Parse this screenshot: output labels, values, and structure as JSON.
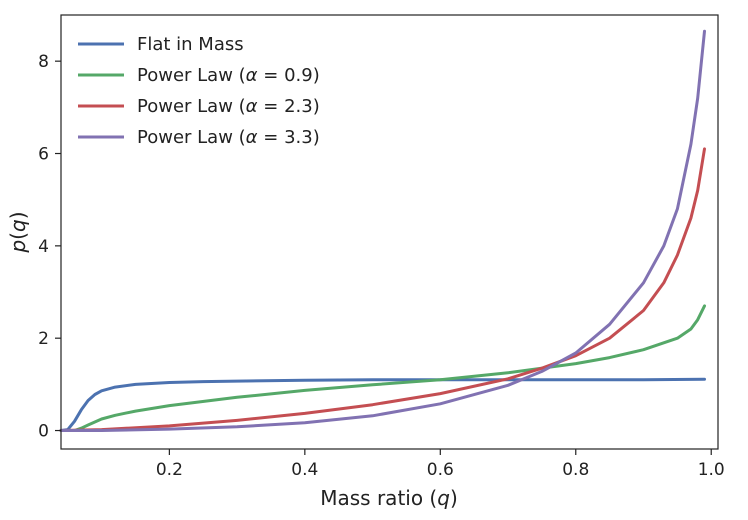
{
  "chart_data": {
    "type": "line",
    "xlabel": "Mass ratio (q)",
    "ylabel": "p(q)",
    "xlim": [
      0.04,
      1.01
    ],
    "ylim": [
      -0.4,
      9.0
    ],
    "xticks": [
      0.2,
      0.4,
      0.6,
      0.8,
      1.0
    ],
    "xtick_labels": [
      "0.2",
      "0.4",
      "0.6",
      "0.8",
      "1.0"
    ],
    "yticks": [
      0,
      2,
      4,
      6,
      8
    ],
    "ytick_labels": [
      "0",
      "2",
      "4",
      "6",
      "8"
    ],
    "grid": false,
    "legend_position": "top-left",
    "series": [
      {
        "name": "Flat in Mass",
        "color": "#4c72b0",
        "x": [
          0.04,
          0.05,
          0.06,
          0.07,
          0.08,
          0.09,
          0.1,
          0.12,
          0.15,
          0.2,
          0.25,
          0.3,
          0.4,
          0.5,
          0.6,
          0.7,
          0.8,
          0.9,
          0.99
        ],
        "y": [
          0.0,
          0.02,
          0.2,
          0.45,
          0.65,
          0.78,
          0.86,
          0.94,
          1.0,
          1.04,
          1.06,
          1.07,
          1.09,
          1.1,
          1.1,
          1.1,
          1.1,
          1.1,
          1.11
        ]
      },
      {
        "name": "Power Law (α = 0.9)",
        "color": "#55a868",
        "x": [
          0.04,
          0.06,
          0.07,
          0.08,
          0.1,
          0.12,
          0.15,
          0.2,
          0.3,
          0.4,
          0.5,
          0.6,
          0.7,
          0.8,
          0.85,
          0.9,
          0.95,
          0.97,
          0.98,
          0.99
        ],
        "y": [
          0.0,
          0.0,
          0.05,
          0.12,
          0.25,
          0.33,
          0.42,
          0.54,
          0.72,
          0.87,
          0.99,
          1.1,
          1.25,
          1.45,
          1.58,
          1.75,
          2.0,
          2.2,
          2.4,
          2.7
        ]
      },
      {
        "name": "Power Law (α = 2.3)",
        "color": "#c44e52",
        "x": [
          0.04,
          0.1,
          0.2,
          0.3,
          0.4,
          0.5,
          0.6,
          0.7,
          0.75,
          0.8,
          0.85,
          0.9,
          0.93,
          0.95,
          0.97,
          0.98,
          0.99
        ],
        "y": [
          0.0,
          0.02,
          0.1,
          0.22,
          0.37,
          0.56,
          0.8,
          1.12,
          1.35,
          1.62,
          2.0,
          2.6,
          3.2,
          3.8,
          4.6,
          5.2,
          6.1
        ]
      },
      {
        "name": "Power Law (α = 3.3)",
        "color": "#8172b2",
        "x": [
          0.04,
          0.1,
          0.2,
          0.3,
          0.4,
          0.5,
          0.6,
          0.7,
          0.75,
          0.8,
          0.85,
          0.9,
          0.93,
          0.95,
          0.97,
          0.98,
          0.99
        ],
        "y": [
          0.0,
          0.0,
          0.03,
          0.08,
          0.17,
          0.32,
          0.58,
          0.98,
          1.28,
          1.68,
          2.3,
          3.2,
          4.0,
          4.8,
          6.2,
          7.2,
          8.65
        ]
      }
    ]
  }
}
